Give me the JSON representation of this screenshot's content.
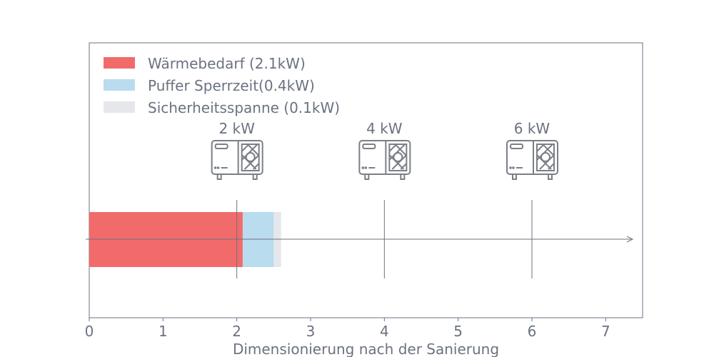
{
  "chart_data": {
    "type": "bar",
    "orientation": "horizontal",
    "stacked": true,
    "series": [
      {
        "name": "Wärmebedarf (2.1kW)",
        "value": 2.08,
        "color": "#f26b6b"
      },
      {
        "name": "Puffer Sperrzeit(0.4kW)",
        "value": 0.42,
        "color": "#b9dcee"
      },
      {
        "name": "Sicherheitsspanne (0.1kW)",
        "value": 0.1,
        "color": "#e5e7eb"
      }
    ],
    "markers": [
      {
        "x": 2,
        "label": "2 kW",
        "icon": "heat-pump-icon"
      },
      {
        "x": 4,
        "label": "4 kW",
        "icon": "heat-pump-icon"
      },
      {
        "x": 6,
        "label": "6 kW",
        "icon": "heat-pump-icon"
      }
    ],
    "xticks": [
      "0",
      "1",
      "2",
      "3",
      "4",
      "5",
      "6",
      "7"
    ],
    "xlabel": "Dimensionierung nach der Sanierung",
    "xlim": [
      0,
      7.5
    ],
    "grid": false,
    "legend_position": "top-left"
  },
  "colors": {
    "axis": "#6b7280",
    "text": "#6b7280"
  }
}
